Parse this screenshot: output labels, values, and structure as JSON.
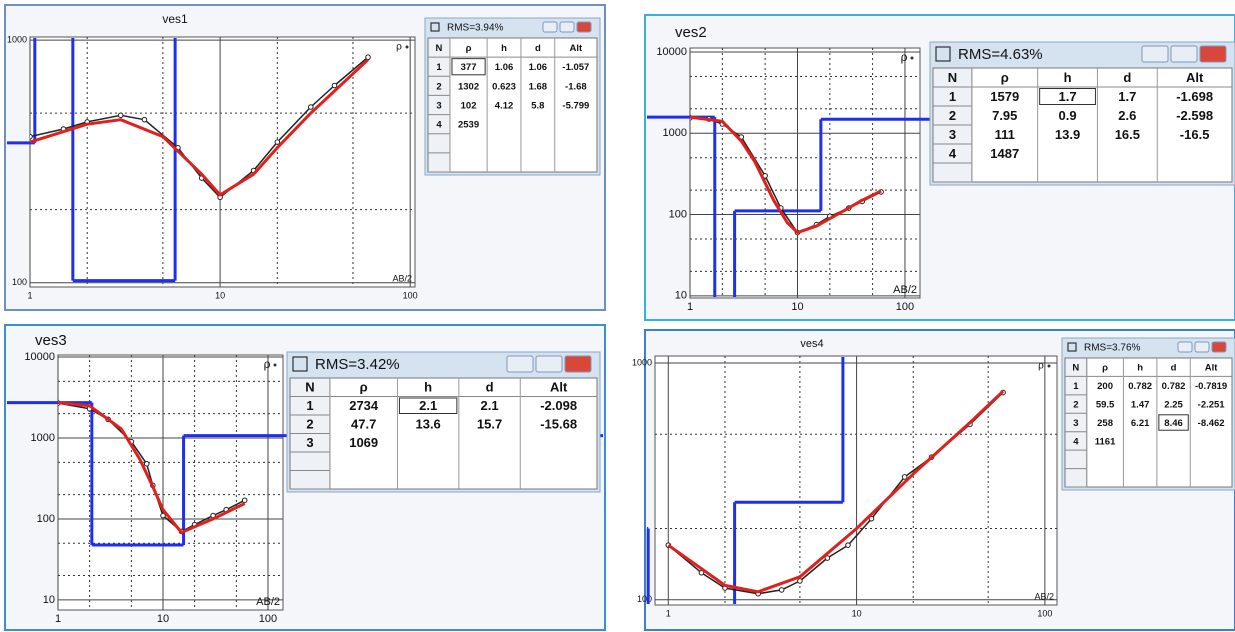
{
  "chart_data": [
    {
      "type": "line",
      "title": "ves1",
      "rms": "RMS=3.94%",
      "table": {
        "columns": [
          "N",
          "ρ",
          "h",
          "d",
          "Alt"
        ],
        "rows": [
          [
            1,
            377,
            1.06,
            1.06,
            -1.057
          ],
          [
            2,
            1302,
            0.623,
            1.68,
            -1.68
          ],
          [
            3,
            102,
            4.12,
            5.8,
            -5.799
          ],
          [
            4,
            2539
          ]
        ]
      },
      "xscale": "log",
      "yscale": "log",
      "grid": true,
      "xlim": [
        1,
        106
      ],
      "ylim": [
        96,
        1030
      ],
      "xticks": [
        1,
        10,
        100
      ],
      "yticks": [
        100,
        1000
      ],
      "xminor": [
        2,
        5,
        20,
        50
      ],
      "yminor": [
        200,
        500
      ],
      "x_label": "AB/2",
      "y_label": "ρ",
      "model_color": "#1f2ff0",
      "series": [
        {
          "color": "#222222",
          "markers": true,
          "x": [
            1,
            1.5,
            2,
            3,
            4,
            6,
            8,
            10,
            15,
            20,
            30,
            40,
            60
          ],
          "values": [
            400,
            430,
            460,
            490,
            470,
            360,
            270,
            225,
            290,
            380,
            530,
            650,
            850
          ]
        },
        {
          "color": "#e0201c",
          "markers": false,
          "x": [
            1,
            2,
            3,
            5,
            8,
            10,
            15,
            20,
            30,
            60
          ],
          "values": [
            380,
            450,
            470,
            400,
            280,
            230,
            280,
            360,
            500,
            830
          ]
        }
      ]
    },
    {
      "type": "line",
      "title": "ves2",
      "rms": "RMS=4.63%",
      "table": {
        "columns": [
          "N",
          "ρ",
          "h",
          "d",
          "Alt"
        ],
        "rows": [
          [
            1,
            1579,
            1.7,
            1.7,
            -1.698
          ],
          [
            2,
            7.95,
            0.9,
            2.6,
            -2.598
          ],
          [
            3,
            111,
            13.9,
            16.5,
            -16.5
          ],
          [
            4,
            1487
          ]
        ]
      },
      "xscale": "log",
      "yscale": "log",
      "grid": true,
      "xlim": [
        1,
        138
      ],
      "ylim": [
        9.4,
        11200
      ],
      "xticks": [
        1,
        10,
        100
      ],
      "yticks": [
        10,
        100,
        1000,
        10000
      ],
      "xminor": [
        2,
        5,
        20,
        50
      ],
      "yminor": [
        20,
        50,
        200,
        500,
        2000,
        5000
      ],
      "x_label": "AB/2",
      "y_label": "ρ",
      "model_color": "#1f2ff0",
      "series": [
        {
          "color": "#222222",
          "markers": true,
          "x": [
            1,
            1.5,
            2,
            3,
            5,
            7,
            10,
            15,
            20,
            30,
            40,
            60
          ],
          "values": [
            1550,
            1500,
            1300,
            900,
            300,
            120,
            60,
            75,
            95,
            120,
            145,
            190
          ]
        },
        {
          "color": "#e0201c",
          "markers": false,
          "x": [
            1,
            2,
            3,
            4,
            6,
            8,
            10,
            15,
            25,
            40,
            60
          ],
          "values": [
            1580,
            1400,
            800,
            450,
            150,
            80,
            60,
            72,
            105,
            150,
            195
          ]
        }
      ]
    },
    {
      "type": "line",
      "title": "ves3",
      "rms": "RMS=3.42%",
      "table": {
        "columns": [
          "N",
          "ρ",
          "h",
          "d",
          "Alt"
        ],
        "rows": [
          [
            1,
            2734,
            2.1,
            2.1,
            -2.098
          ],
          [
            2,
            47.7,
            13.6,
            15.7,
            -15.68
          ],
          [
            3,
            1069
          ]
        ]
      },
      "xscale": "log",
      "yscale": "log",
      "grid": true,
      "xlim": [
        1,
        139
      ],
      "ylim": [
        7.5,
        10600
      ],
      "xticks": [
        1,
        10,
        100
      ],
      "yticks": [
        10,
        100,
        1000,
        10000
      ],
      "xminor": [
        2,
        5,
        20,
        50
      ],
      "yminor": [
        20,
        50,
        200,
        500,
        2000,
        5000
      ],
      "x_label": "AB/2",
      "y_label": "ρ",
      "model_color": "#1f2ff0",
      "series": [
        {
          "color": "#222222",
          "markers": true,
          "x": [
            1,
            2,
            3,
            5,
            7,
            8,
            10,
            15,
            20,
            30,
            40,
            60
          ],
          "values": [
            2700,
            2300,
            1700,
            900,
            480,
            260,
            110,
            70,
            85,
            110,
            130,
            170
          ]
        },
        {
          "color": "#e0201c",
          "markers": false,
          "x": [
            1,
            2,
            4,
            6,
            8,
            10,
            15,
            20,
            30,
            60
          ],
          "values": [
            2734,
            2500,
            1300,
            550,
            250,
            130,
            68,
            80,
            100,
            155
          ]
        }
      ]
    },
    {
      "type": "line",
      "title": "ves4",
      "rms": "RMS=3.76%",
      "table": {
        "columns": [
          "N",
          "ρ",
          "h",
          "d",
          "Alt"
        ],
        "rows": [
          [
            1,
            200,
            0.782,
            0.782,
            -0.7819
          ],
          [
            2,
            59.5,
            1.47,
            2.25,
            -2.251
          ],
          [
            3,
            258,
            6.21,
            8.46,
            -8.462
          ],
          [
            4,
            1161
          ]
        ]
      },
      "xscale": "log",
      "yscale": "log",
      "grid": true,
      "xlim": [
        0.85,
        116
      ],
      "ylim": [
        95,
        1070
      ],
      "xticks": [
        1,
        10,
        100
      ],
      "yticks": [
        100,
        1000
      ],
      "xminor": [
        2,
        5,
        20,
        50
      ],
      "yminor": [
        200,
        500
      ],
      "x_label": "AB/2",
      "y_label": "ρ",
      "model_color": "#1f2ff0",
      "series": [
        {
          "color": "#222222",
          "markers": true,
          "x": [
            1,
            1.5,
            2,
            3,
            4,
            5,
            7,
            9,
            12,
            18,
            25,
            40,
            60
          ],
          "values": [
            170,
            130,
            112,
            106,
            110,
            120,
            150,
            170,
            220,
            330,
            400,
            550,
            750
          ]
        },
        {
          "color": "#e0201c",
          "markers": false,
          "x": [
            1,
            2,
            3,
            5,
            10,
            20,
            40,
            60
          ],
          "values": [
            170,
            115,
            108,
            125,
            200,
            340,
            560,
            760
          ]
        }
      ]
    }
  ]
}
